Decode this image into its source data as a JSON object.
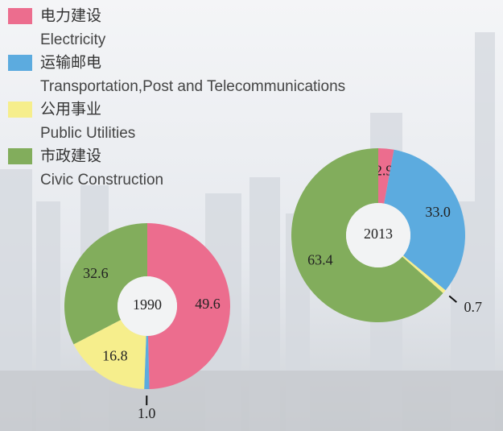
{
  "legend": [
    {
      "label_zh": "电力建设",
      "label_en": "Electricity",
      "color": "#ec6d8e"
    },
    {
      "label_zh": "运输邮电",
      "label_en": "Transportation,Post and Telecommunications",
      "color": "#5cabdf"
    },
    {
      "label_zh": "公用事业",
      "label_en": "Public Utilities",
      "color": "#f6ee8c"
    },
    {
      "label_zh": "市政建设",
      "label_en": "Civic Construction",
      "color": "#82ad5c"
    }
  ],
  "chart_data": [
    {
      "type": "pie",
      "title": "1990",
      "values": [
        49.6,
        1.0,
        16.8,
        32.6
      ],
      "value_labels": [
        "49.6",
        "1.0",
        "16.8",
        "32.6"
      ]
    },
    {
      "type": "pie",
      "title": "2013",
      "values": [
        2.9,
        33.0,
        0.7,
        63.4
      ],
      "value_labels": [
        "2.9",
        "33.0",
        "0.7",
        "63.4"
      ]
    }
  ]
}
